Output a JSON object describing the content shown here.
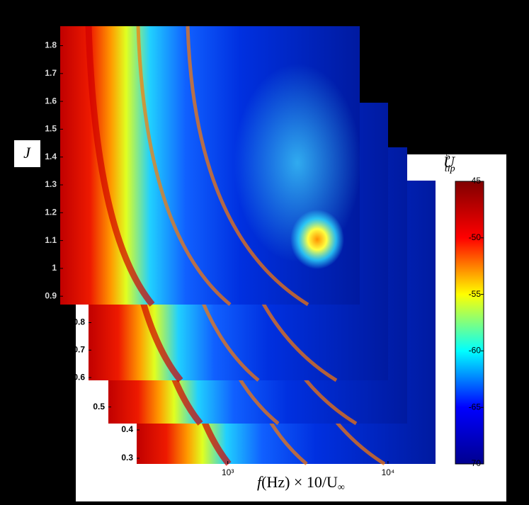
{
  "chart_data": {
    "type": "heatmap",
    "y_label": "J",
    "x_label": {
      "f": "f",
      "rest": "(Hz) × 10/U",
      "sub": "∞"
    },
    "xscale": "log",
    "xlim": [
      270,
      19800
    ],
    "xticks": [
      {
        "value": 1000,
        "label": "10³"
      },
      {
        "value": 10000,
        "label": "10⁴"
      }
    ],
    "panels": [
      {
        "ylim": [
          0.28,
          1.28
        ],
        "yticks": [
          0.4,
          0.3
        ]
      },
      {
        "ylim": [
          0.44,
          1.44
        ],
        "yticks": [
          0.5
        ]
      },
      {
        "ylim": [
          0.59,
          1.6
        ],
        "yticks": [
          0.8,
          0.7,
          0.6
        ]
      },
      {
        "ylim": [
          0.87,
          1.87
        ],
        "yticks": [
          1.8,
          1.7,
          1.6,
          1.5,
          1.4,
          1.3,
          1.2,
          1.1,
          1,
          0.9
        ]
      }
    ],
    "colorbar": {
      "label": {
        "base": "U",
        "sub": "tip",
        "sup": "5"
      },
      "ylim": [
        -70,
        -45
      ],
      "yticks": [
        -45,
        -50,
        -55,
        -60,
        -65,
        -70
      ],
      "colors": [
        "#00008f",
        "#0000ff",
        "#00ffff",
        "#ffff00",
        "#ff0000",
        "#800000"
      ]
    }
  }
}
